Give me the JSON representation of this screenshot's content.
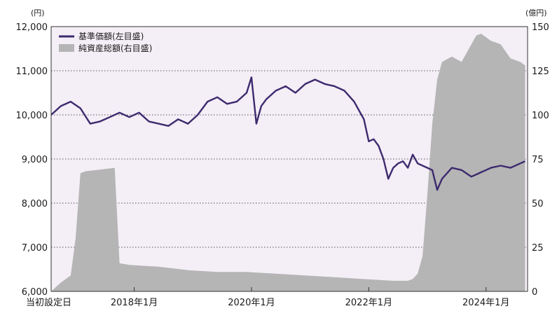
{
  "chart_data": {
    "type": "line+area",
    "left_unit": "(円)",
    "right_unit": "(億円)",
    "left_ticks": [
      "12,000",
      "11,000",
      "10,000",
      "9,000",
      "8,000",
      "7,000",
      "6,000"
    ],
    "right_ticks": [
      "150",
      "125",
      "100",
      "75",
      "50",
      "25",
      "0"
    ],
    "x_ticks": [
      "当初設定日",
      "2018年1月",
      "2020年1月",
      "2022年1月",
      "2024年1月"
    ],
    "ylim_left": [
      6000,
      12000
    ],
    "ylim_right": [
      0,
      150
    ],
    "grid": true,
    "legend_position": "top-left",
    "colors": {
      "nav_line": "#3d2a6e",
      "assets_area": "#b5b5b5",
      "background": "#f4eef6"
    },
    "series": [
      {
        "name": "基準価額(左目盛)",
        "axis": "left",
        "kind": "line",
        "x": [
          "2016-08",
          "2016-10",
          "2016-12",
          "2017-02",
          "2017-04",
          "2017-06",
          "2017-08",
          "2017-10",
          "2017-12",
          "2018-02",
          "2018-04",
          "2018-06",
          "2018-08",
          "2018-10",
          "2018-12",
          "2019-02",
          "2019-04",
          "2019-06",
          "2019-08",
          "2019-10",
          "2019-12",
          "2020-01",
          "2020-02",
          "2020-03",
          "2020-04",
          "2020-06",
          "2020-08",
          "2020-10",
          "2020-12",
          "2021-02",
          "2021-04",
          "2021-06",
          "2021-08",
          "2021-10",
          "2021-12",
          "2022-01",
          "2022-02",
          "2022-03",
          "2022-04",
          "2022-05",
          "2022-06",
          "2022-07",
          "2022-08",
          "2022-09",
          "2022-10",
          "2022-11",
          "2022-12",
          "2023-01",
          "2023-02",
          "2023-03",
          "2023-04",
          "2023-06",
          "2023-08",
          "2023-10",
          "2023-11",
          "2023-12",
          "2024-01",
          "2024-02",
          "2024-04",
          "2024-06",
          "2024-08",
          "2024-09"
        ],
        "values": [
          10000,
          10200,
          10300,
          10150,
          9800,
          9850,
          9950,
          10050,
          9950,
          10050,
          9850,
          9800,
          9750,
          9900,
          9800,
          10000,
          10300,
          10400,
          10250,
          10300,
          10500,
          10850,
          9800,
          10200,
          10350,
          10550,
          10650,
          10500,
          10700,
          10800,
          10700,
          10650,
          10550,
          10300,
          9900,
          9400,
          9450,
          9300,
          9000,
          8550,
          8800,
          8900,
          8950,
          8800,
          9100,
          8900,
          8850,
          8800,
          8750,
          8300,
          8550,
          8800,
          8750,
          8600,
          8650,
          8700,
          8750,
          8800,
          8850,
          8800,
          8900,
          8950
        ]
      },
      {
        "name": "純資産総額(右目盛)",
        "axis": "right",
        "kind": "area",
        "x": [
          "2016-08",
          "2016-10",
          "2016-12",
          "2017-01",
          "2017-02",
          "2017-03",
          "2017-06",
          "2017-09",
          "2017-10",
          "2017-12",
          "2018-06",
          "2018-12",
          "2019-06",
          "2019-12",
          "2020-06",
          "2020-12",
          "2021-06",
          "2021-12",
          "2022-06",
          "2022-09",
          "2022-10",
          "2022-11",
          "2022-12",
          "2023-01",
          "2023-02",
          "2023-03",
          "2023-04",
          "2023-06",
          "2023-08",
          "2023-10",
          "2023-11",
          "2023-12",
          "2024-01",
          "2024-02",
          "2024-04",
          "2024-06",
          "2024-08",
          "2024-09"
        ],
        "values": [
          0,
          5,
          9,
          30,
          67,
          68,
          69,
          70,
          16,
          15,
          14,
          12,
          11,
          11,
          10,
          9,
          8,
          7,
          6,
          6,
          7,
          10,
          20,
          55,
          95,
          120,
          130,
          133,
          130,
          140,
          145,
          146,
          144,
          142,
          140,
          132,
          130,
          128
        ]
      }
    ]
  }
}
